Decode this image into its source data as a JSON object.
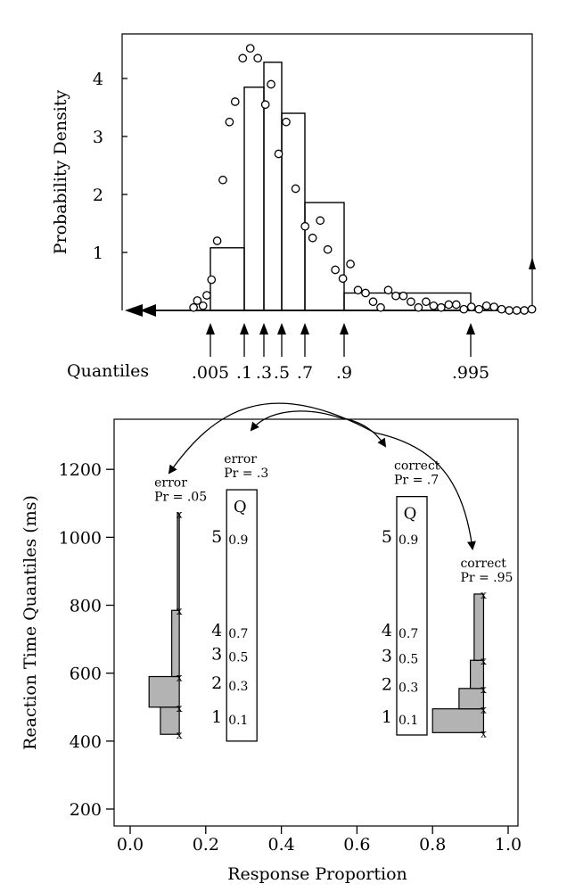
{
  "chart_data": [
    {
      "type": "bar",
      "panel": "top",
      "ylabel": "Probability Density",
      "ylim": [
        0,
        4.9
      ],
      "yticks": [
        1,
        2,
        3,
        4
      ],
      "quantiles_label": "Quantiles",
      "quantile_ticks": [
        {
          "label": ".005",
          "x": 0.005
        },
        {
          "label": ".1",
          "x": 0.1
        },
        {
          "label": ".3",
          "x": 0.3
        },
        {
          "label": ".5",
          "x": 0.5
        },
        {
          "label": ".7",
          "x": 0.7
        },
        {
          "label": ".9",
          "x": 0.9
        },
        {
          "label": ".995",
          "x": 0.995
        }
      ],
      "bins": [
        {
          "q_from": 0.005,
          "q_to": 0.1,
          "density": 1.08
        },
        {
          "q_from": 0.1,
          "q_to": 0.2,
          "density": 3.85
        },
        {
          "q_from": 0.2,
          "q_to": 0.3,
          "density": 4.28
        },
        {
          "q_from": 0.3,
          "q_to": 0.4,
          "density": 3.4
        },
        {
          "q_from": 0.4,
          "q_to": 0.5,
          "density": 1.86
        },
        {
          "q_from": 0.5,
          "q_to": 0.6,
          "density": 0.3
        }
      ],
      "points": [
        [
          0.002,
          0.05
        ],
        [
          0.006,
          0.17
        ],
        [
          0.012,
          0.08
        ],
        [
          0.016,
          0.26
        ],
        [
          0.021,
          0.53
        ],
        [
          0.027,
          1.2
        ],
        [
          0.033,
          2.25
        ],
        [
          0.04,
          3.25
        ],
        [
          0.046,
          3.6
        ],
        [
          0.054,
          4.35
        ],
        [
          0.062,
          4.52
        ],
        [
          0.07,
          4.35
        ],
        [
          0.078,
          3.55
        ],
        [
          0.084,
          3.9
        ],
        [
          0.092,
          2.7
        ],
        [
          0.1,
          3.25
        ],
        [
          0.11,
          2.1
        ],
        [
          0.12,
          1.45
        ],
        [
          0.128,
          1.25
        ],
        [
          0.136,
          1.55
        ],
        [
          0.144,
          1.05
        ],
        [
          0.152,
          0.7
        ],
        [
          0.16,
          0.55
        ],
        [
          0.168,
          0.8
        ],
        [
          0.176,
          0.35
        ],
        [
          0.184,
          0.3
        ],
        [
          0.192,
          0.15
        ],
        [
          0.2,
          0.05
        ],
        [
          0.208,
          0.35
        ],
        [
          0.216,
          0.25
        ],
        [
          0.224,
          0.25
        ],
        [
          0.232,
          0.15
        ],
        [
          0.24,
          0.05
        ],
        [
          0.248,
          0.15
        ],
        [
          0.256,
          0.08
        ],
        [
          0.264,
          0.05
        ],
        [
          0.272,
          0.1
        ],
        [
          0.28,
          0.1
        ],
        [
          0.288,
          0.02
        ],
        [
          0.296,
          0.06
        ],
        [
          0.304,
          0.02
        ],
        [
          0.312,
          0.08
        ],
        [
          0.32,
          0.06
        ],
        [
          0.328,
          0.02
        ],
        [
          0.336,
          0.0
        ],
        [
          0.344,
          0.0
        ],
        [
          0.352,
          0.0
        ],
        [
          0.36,
          0.02
        ]
      ]
    },
    {
      "type": "bar",
      "panel": "bottom",
      "xlabel": "Response Proportion",
      "ylabel": "Reaction Time Quantiles (ms)",
      "xlim": [
        -0.04,
        1.04
      ],
      "ylim": [
        150,
        1340
      ],
      "xticks": [
        0.0,
        0.2,
        0.4,
        0.6,
        0.8,
        1.0
      ],
      "xtick_labels": [
        "0.0",
        "0.2",
        "0.4",
        "0.6",
        "0.8",
        "1.0"
      ],
      "yticks": [
        200,
        400,
        600,
        800,
        1000,
        1200
      ],
      "ytick_labels": [
        "200",
        "400",
        "600",
        "800",
        "1000",
        "1200"
      ],
      "columns": [
        {
          "label_lines": [
            "error",
            "Pr = .05"
          ],
          "x": 0.13,
          "quantile_rts": [
            420,
            500,
            590,
            785,
            1070
          ],
          "bar_starts": [
            0.1,
            0.08,
            0.05,
            0.11,
            0.125
          ]
        },
        {
          "label_lines": [
            "error",
            "Pr = .3"
          ],
          "x": 0.3,
          "q_header": "Q",
          "rt_from": 400,
          "rt_to": 1140,
          "rows": [
            {
              "num": "1",
              "q": "0.1",
              "rt": 455
            },
            {
              "num": "2",
              "q": "0.3",
              "rt": 555
            },
            {
              "num": "3",
              "q": "0.5",
              "rt": 640
            },
            {
              "num": "4",
              "q": "0.7",
              "rt": 710
            },
            {
              "num": "5",
              "q": "0.9",
              "rt": 985
            }
          ]
        },
        {
          "label_lines": [
            "correct",
            "Pr = .7"
          ],
          "x": 0.75,
          "q_header": "Q",
          "rt_from": 418,
          "rt_to": 1120,
          "rows": [
            {
              "num": "1",
              "q": "0.1",
              "rt": 455
            },
            {
              "num": "2",
              "q": "0.3",
              "rt": 550
            },
            {
              "num": "3",
              "q": "0.5",
              "rt": 635
            },
            {
              "num": "4",
              "q": "0.7",
              "rt": 710
            },
            {
              "num": "5",
              "q": "0.9",
              "rt": 985
            }
          ]
        },
        {
          "label_lines": [
            "correct",
            "Pr = .95"
          ],
          "x": 0.935,
          "quantile_rts": [
            425,
            495,
            555,
            638,
            833
          ],
          "bar_starts": [
            0.86,
            0.8,
            0.87,
            0.9,
            0.91
          ]
        }
      ]
    }
  ]
}
